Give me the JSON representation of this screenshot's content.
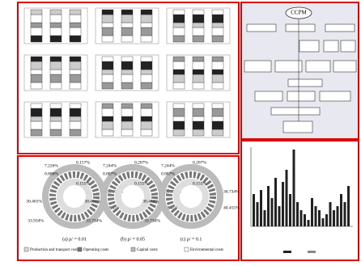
{
  "flowchart": {
    "root": "CCPM"
  },
  "donuts": [
    {
      "caption": "(a) ρ/ = 0.01",
      "labels": [
        "7.226%",
        "0.157%",
        "0.886%",
        "0.155%",
        "30.633%",
        "40.456%",
        "30.401%",
        "33.934%"
      ]
    },
    {
      "caption": "(b) ρ/ = 0.05",
      "labels": [
        "7.244%",
        "0.207%",
        "0.887%",
        "0.155%",
        "30.733%",
        "40.458%",
        "30.401%",
        "33.734%"
      ]
    },
    {
      "caption": "(c) ρ/ = 0.1",
      "labels": [
        "7.244%",
        "0.207%",
        "0.887%",
        "0.155%",
        "30.734%",
        "40.455%",
        "30.402%",
        "33.734%"
      ]
    }
  ],
  "legend": [
    "Production and transport costs",
    "Operating costs",
    "Capital costs",
    "Environmental costs"
  ]
}
